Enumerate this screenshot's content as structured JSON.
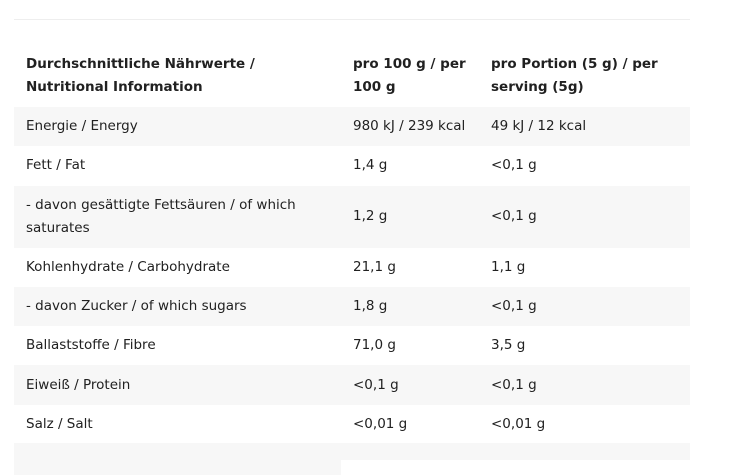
{
  "table": {
    "headers": [
      "Durchschnittliche Nährwerte / Nutritional Information",
      "pro 100 g / per 100 g",
      "pro Portion (5 g) / per serving (5g)"
    ],
    "rows": [
      [
        "Energie / Energy",
        "980 kJ / 239 kcal",
        "49 kJ / 12 kcal"
      ],
      [
        "Fett / Fat",
        "1,4 g",
        "<0,1 g"
      ],
      [
        "- davon gesättigte Fettsäuren / of which saturates",
        "1,2 g",
        "<0,1 g"
      ],
      [
        "Kohlenhydrate / Carbohydrate",
        "21,1 g",
        "1,1 g"
      ],
      [
        "- davon Zucker / of which sugars",
        "1,8 g",
        "<0,1 g"
      ],
      [
        "Ballaststoffe / Fibre",
        "71,0 g",
        "3,5 g"
      ],
      [
        "Eiweiß / Protein",
        "<0,1 g",
        "<0,1 g"
      ],
      [
        "Salz / Salt",
        "<0,01 g",
        "<0,01 g"
      ]
    ]
  },
  "colors": {
    "row_alt_background": "#f7f7f7",
    "text": "#212121"
  }
}
